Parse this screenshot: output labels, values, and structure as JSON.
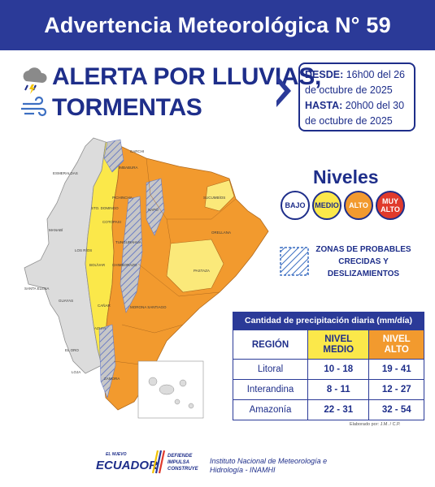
{
  "header": {
    "title": "Advertencia Meteorológica N° 59"
  },
  "alert": {
    "line1_prefix": "ALERTA POR ",
    "line1_emph": "LLUVIAS,",
    "line2": "TORMENTAS",
    "icons": [
      "rain-storm-icon",
      "wind-icon"
    ]
  },
  "dates": {
    "from_label": "DESDE:",
    "from_value": "16h00 del 26 de octubre de 2025",
    "to_label": "HASTA:",
    "to_value": "20h00 del 30 de octubre de 2025"
  },
  "map": {
    "provinces": [
      "ESMERALDAS",
      "CARCHI",
      "IMBABURA",
      "SUCUMBÍOS",
      "PICHINCHA",
      "STO. DOMINGO",
      "NAPO",
      "ORELLANA",
      "MANABÍ",
      "COTOPAXI",
      "LOS RÍOS",
      "TUNGURAHUA",
      "BOLÍVAR",
      "CHIMBORAZO",
      "PASTAZA",
      "SANTA ELENA",
      "GUAYAS",
      "CAÑAR",
      "MORONA SANTIAGO",
      "AZUAY",
      "EL ORO",
      "LOJA",
      "ZAMORA"
    ],
    "colors": {
      "bajo": "#dcdcdc",
      "medio": "#fbe84a",
      "medio_pale": "#fbe97a",
      "alto": "#f29a2e"
    }
  },
  "legend": {
    "title": "Niveles",
    "items": [
      {
        "label": "BAJO",
        "color": "#ffffff"
      },
      {
        "label": "MEDIO",
        "color": "#fbe84a"
      },
      {
        "label": "ALTO",
        "color": "#f29a2e"
      },
      {
        "label": "MUY ALTO",
        "color": "#e03a2c"
      }
    ],
    "zones_label": "ZONAS DE PROBABLES CRECIDAS Y DESLIZAMIENTOS"
  },
  "precip_table": {
    "title": "Cantidad de precipitación diaria (mm/día)",
    "headers": {
      "region": "REGIÓN",
      "medio": "NIVEL MEDIO",
      "alto": "NIVEL ALTO"
    },
    "rows": [
      {
        "region": "Litoral",
        "medio": "10 - 18",
        "alto": "19 - 41"
      },
      {
        "region": "Interandina",
        "medio": "8 - 11",
        "alto": "12 - 27"
      },
      {
        "region": "Amazonía",
        "medio": "22 - 31",
        "alto": "32 - 54"
      }
    ],
    "credit": "Elaborado por: J.M. / C.P."
  },
  "footer": {
    "logo_top": "EL NUEVO",
    "logo_main": "ECUADOR",
    "logo_slogan": [
      "DEFIENDE",
      "IMPULSA",
      "CONSTRUYE"
    ],
    "institute": "Instituto Nacional de Meteorología e Hidrología - INAMHI"
  }
}
